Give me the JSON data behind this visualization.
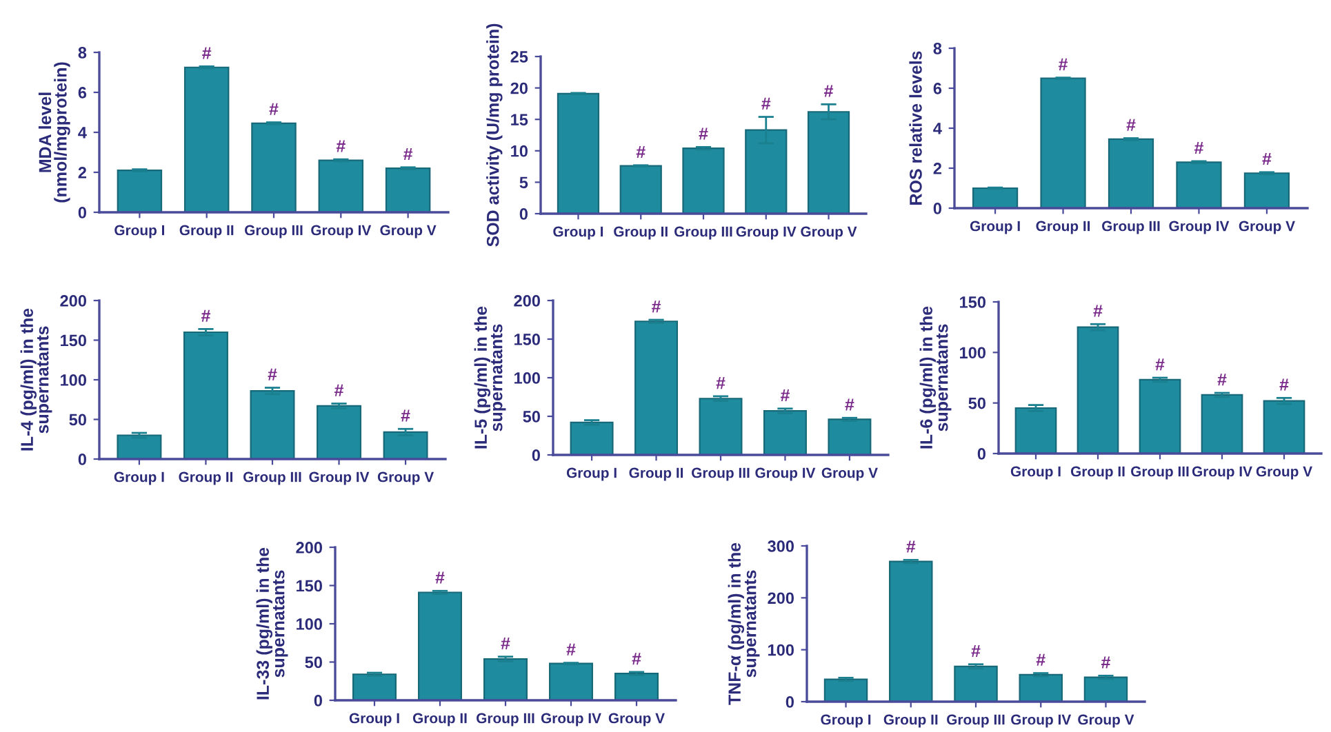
{
  "chart_data": [
    {
      "type": "bar",
      "ylabel": "MDA level\n(nmol/mgprotein)",
      "categories": [
        "Group I",
        "Group II",
        "Group III",
        "Group IV",
        "Group V"
      ],
      "values": [
        2.1,
        7.25,
        4.45,
        2.6,
        2.2
      ],
      "errors": [
        0.05,
        0.05,
        0.05,
        0.05,
        0.05
      ],
      "color": "#1e8c9e",
      "ylim": [
        0,
        8
      ],
      "yticks": [
        0,
        2,
        4,
        6,
        8
      ],
      "annotations": [
        {
          "text": "#",
          "x": "Group II",
          "y": 7.25
        },
        {
          "text": "#",
          "x": "Group III",
          "y": 4.45
        },
        {
          "text": "#",
          "x": "Group IV",
          "y": 2.6
        },
        {
          "text": "#",
          "x": "Group V",
          "y": 2.2
        }
      ]
    },
    {
      "type": "bar",
      "ylabel": "SOD activity (U/mg protein)",
      "categories": [
        "Group I",
        "Group II",
        "Group III",
        "Group IV",
        "Group V"
      ],
      "values": [
        19.1,
        7.6,
        10.4,
        13.3,
        16.2
      ],
      "errors": [
        0.1,
        0.1,
        0.2,
        2.1,
        1.2
      ],
      "color": "#1e8c9e",
      "ylim": [
        0,
        25
      ],
      "yticks": [
        0,
        5,
        10,
        15,
        20,
        25
      ],
      "annotations": [
        {
          "text": "#",
          "x": "Group II",
          "y": 7.6
        },
        {
          "text": "#",
          "x": "Group III",
          "y": 10.4
        },
        {
          "text": "#",
          "x": "Group IV",
          "y": 13.3
        },
        {
          "text": "#",
          "x": "Group V",
          "y": 16.2
        }
      ]
    },
    {
      "type": "bar",
      "ylabel": "ROS relative levels",
      "categories": [
        "Group I",
        "Group II",
        "Group III",
        "Group IV",
        "Group V"
      ],
      "values": [
        1.0,
        6.5,
        3.45,
        2.3,
        1.75
      ],
      "errors": [
        0.03,
        0.03,
        0.05,
        0.05,
        0.05
      ],
      "color": "#1e8c9e",
      "ylim": [
        0,
        8
      ],
      "yticks": [
        0,
        2,
        4,
        6,
        8
      ],
      "annotations": [
        {
          "text": "#",
          "x": "Group II",
          "y": 6.5
        },
        {
          "text": "#",
          "x": "Group III",
          "y": 3.45
        },
        {
          "text": "#",
          "x": "Group IV",
          "y": 2.3
        },
        {
          "text": "#",
          "x": "Group V",
          "y": 1.75
        }
      ]
    },
    {
      "type": "bar",
      "ylabel": "IL-4 (pg/ml) in the\nsupernatants",
      "categories": [
        "Group I",
        "Group II",
        "Group III",
        "Group IV",
        "Group V"
      ],
      "values": [
        30,
        160,
        86,
        67,
        34
      ],
      "errors": [
        3,
        4,
        4,
        3,
        4
      ],
      "color": "#1e8c9e",
      "ylim": [
        0,
        200
      ],
      "yticks": [
        0,
        50,
        100,
        150,
        200
      ],
      "annotations": [
        {
          "text": "#",
          "x": "Group II",
          "y": 160
        },
        {
          "text": "#",
          "x": "Group III",
          "y": 86
        },
        {
          "text": "#",
          "x": "Group IV",
          "y": 67
        },
        {
          "text": "#",
          "x": "Group V",
          "y": 34
        }
      ]
    },
    {
      "type": "bar",
      "ylabel": "IL-5 (pg/ml) in the\nsupernatants",
      "categories": [
        "Group I",
        "Group II",
        "Group III",
        "Group IV",
        "Group V"
      ],
      "values": [
        42,
        173,
        73,
        57,
        46
      ],
      "errors": [
        3,
        2,
        3,
        3,
        2
      ],
      "color": "#1e8c9e",
      "ylim": [
        0,
        200
      ],
      "yticks": [
        0,
        50,
        100,
        150,
        200
      ],
      "annotations": [
        {
          "text": "#",
          "x": "Group II",
          "y": 173
        },
        {
          "text": "#",
          "x": "Group III",
          "y": 73
        },
        {
          "text": "#",
          "x": "Group IV",
          "y": 57
        },
        {
          "text": "#",
          "x": "Group V",
          "y": 46
        }
      ]
    },
    {
      "type": "bar",
      "ylabel": "IL-6 (pg/ml) in the\nsupernatants",
      "categories": [
        "Group I",
        "Group II",
        "Group III",
        "Group IV",
        "Group V"
      ],
      "values": [
        45,
        125,
        73,
        58,
        52
      ],
      "errors": [
        3,
        3,
        2,
        2,
        3
      ],
      "color": "#1e8c9e",
      "ylim": [
        0,
        150
      ],
      "yticks": [
        0,
        50,
        100,
        150
      ],
      "annotations": [
        {
          "text": "#",
          "x": "Group II",
          "y": 125
        },
        {
          "text": "#",
          "x": "Group III",
          "y": 73
        },
        {
          "text": "#",
          "x": "Group IV",
          "y": 58
        },
        {
          "text": "#",
          "x": "Group V",
          "y": 52
        }
      ]
    },
    {
      "type": "bar",
      "ylabel": "IL-33 (pg/ml) in the\nsupernatants",
      "categories": [
        "Group I",
        "Group II",
        "Group III",
        "Group IV",
        "Group V"
      ],
      "values": [
        34,
        141,
        54,
        48,
        35
      ],
      "errors": [
        2,
        2,
        3,
        1,
        2
      ],
      "color": "#1e8c9e",
      "ylim": [
        0,
        200
      ],
      "yticks": [
        0,
        50,
        100,
        150,
        200
      ],
      "annotations": [
        {
          "text": "#",
          "x": "Group II",
          "y": 141
        },
        {
          "text": "#",
          "x": "Group III",
          "y": 54
        },
        {
          "text": "#",
          "x": "Group IV",
          "y": 48
        },
        {
          "text": "#",
          "x": "Group V",
          "y": 35
        }
      ]
    },
    {
      "type": "bar",
      "ylabel": "TNF-α (pg/ml) in the\nsupernatants",
      "categories": [
        "Group I",
        "Group II",
        "Group III",
        "Group IV",
        "Group V"
      ],
      "values": [
        43,
        270,
        68,
        52,
        47
      ],
      "errors": [
        3,
        3,
        4,
        3,
        3
      ],
      "color": "#1e8c9e",
      "ylim": [
        0,
        300
      ],
      "yticks": [
        0,
        100,
        200,
        300
      ],
      "annotations": [
        {
          "text": "#",
          "x": "Group II",
          "y": 270
        },
        {
          "text": "#",
          "x": "Group III",
          "y": 68
        },
        {
          "text": "#",
          "x": "Group IV",
          "y": 52
        },
        {
          "text": "#",
          "x": "Group V",
          "y": 47
        }
      ]
    }
  ]
}
